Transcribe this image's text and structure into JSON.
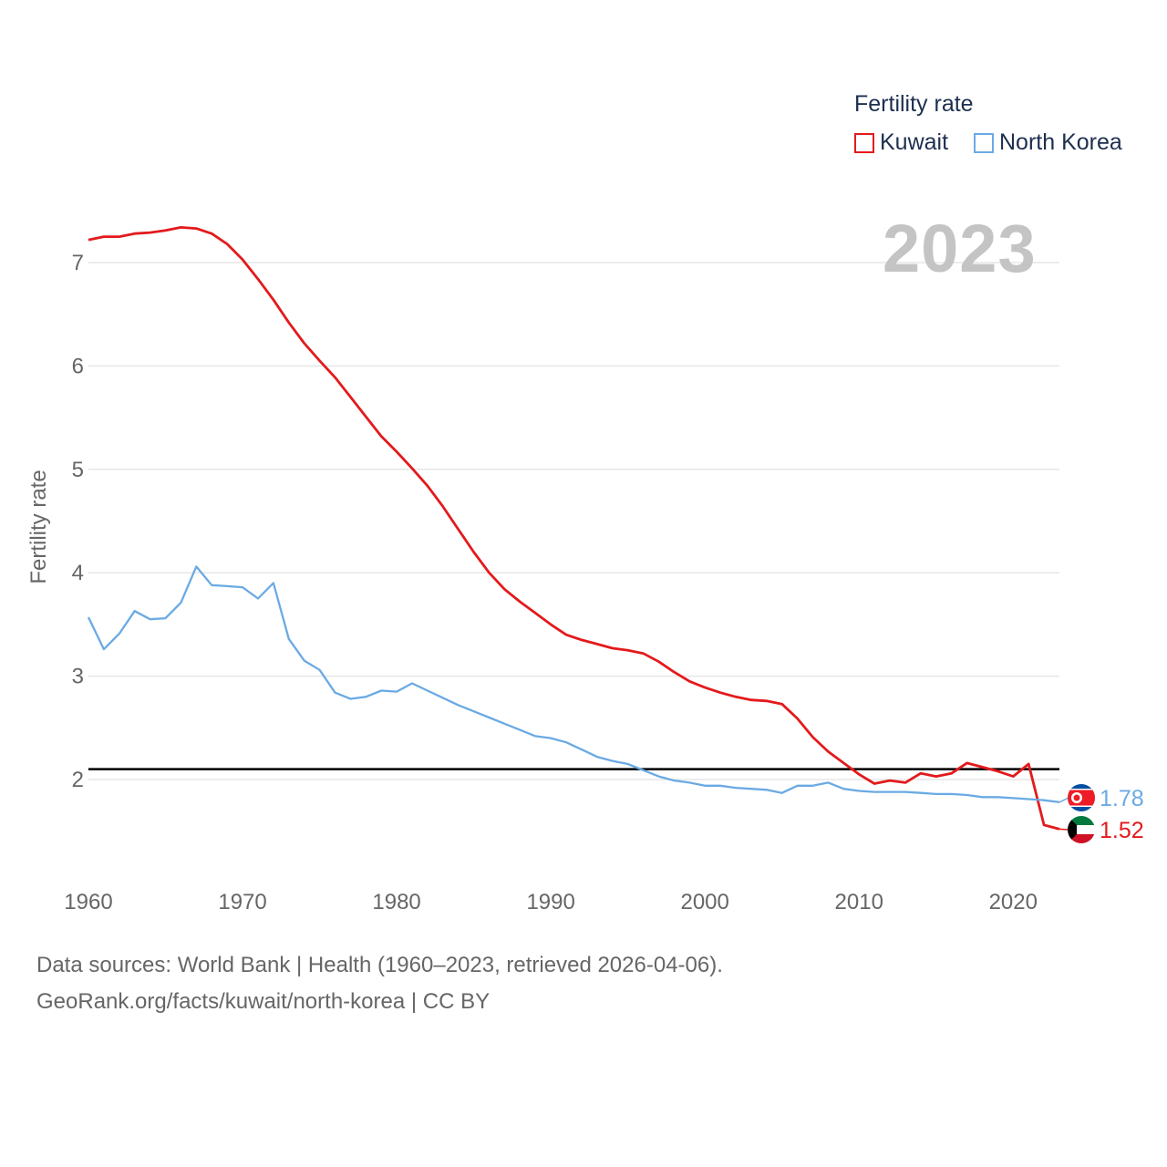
{
  "chart_data": {
    "type": "line",
    "year_display": "2023",
    "legend_title": "Fertility rate",
    "ylabel": "Fertility rate",
    "xlabel": "",
    "xlim": [
      1960,
      2023
    ],
    "ylim": [
      1.2,
      7.5
    ],
    "x_ticks": [
      1960,
      1970,
      1980,
      1990,
      2000,
      2010,
      2020
    ],
    "y_ticks": [
      2,
      3,
      4,
      5,
      6,
      7
    ],
    "reference_line": {
      "y": 2.1,
      "color": "#000000"
    },
    "x": [
      1960,
      1961,
      1962,
      1963,
      1964,
      1965,
      1966,
      1967,
      1968,
      1969,
      1970,
      1971,
      1972,
      1973,
      1974,
      1975,
      1976,
      1977,
      1978,
      1979,
      1980,
      1981,
      1982,
      1983,
      1984,
      1985,
      1986,
      1987,
      1988,
      1989,
      1990,
      1991,
      1992,
      1993,
      1994,
      1995,
      1996,
      1997,
      1998,
      1999,
      2000,
      2001,
      2002,
      2003,
      2004,
      2005,
      2006,
      2007,
      2008,
      2009,
      2010,
      2011,
      2012,
      2013,
      2014,
      2015,
      2016,
      2017,
      2018,
      2019,
      2020,
      2021,
      2022,
      2023
    ],
    "series": [
      {
        "name": "Kuwait",
        "color": "#e31a1c",
        "end_label": "1.52",
        "values": [
          7.22,
          7.25,
          7.25,
          7.28,
          7.29,
          7.31,
          7.34,
          7.33,
          7.28,
          7.18,
          7.03,
          6.84,
          6.64,
          6.42,
          6.22,
          6.05,
          5.89,
          5.7,
          5.51,
          5.32,
          5.17,
          5.01,
          4.84,
          4.64,
          4.42,
          4.2,
          4.0,
          3.84,
          3.72,
          3.61,
          3.5,
          3.4,
          3.35,
          3.31,
          3.27,
          3.25,
          3.22,
          3.14,
          3.04,
          2.95,
          2.89,
          2.84,
          2.8,
          2.77,
          2.76,
          2.73,
          2.59,
          2.41,
          2.27,
          2.16,
          2.05,
          1.96,
          1.99,
          1.97,
          2.06,
          2.03,
          2.06,
          2.16,
          2.12,
          2.08,
          2.03,
          2.15,
          1.56,
          1.52
        ]
      },
      {
        "name": "North Korea",
        "color": "#6aaae4",
        "end_label": "1.78",
        "values": [
          3.57,
          3.26,
          3.41,
          3.63,
          3.55,
          3.56,
          3.71,
          4.06,
          3.88,
          3.87,
          3.86,
          3.75,
          3.9,
          3.36,
          3.15,
          3.06,
          2.84,
          2.78,
          2.8,
          2.86,
          2.85,
          2.93,
          2.86,
          2.79,
          2.72,
          2.66,
          2.6,
          2.54,
          2.48,
          2.42,
          2.4,
          2.36,
          2.29,
          2.22,
          2.18,
          2.15,
          2.09,
          2.03,
          1.99,
          1.97,
          1.94,
          1.94,
          1.92,
          1.91,
          1.9,
          1.87,
          1.94,
          1.94,
          1.97,
          1.91,
          1.89,
          1.88,
          1.88,
          1.88,
          1.87,
          1.86,
          1.86,
          1.85,
          1.83,
          1.83,
          1.82,
          1.81,
          1.8,
          1.78
        ]
      }
    ],
    "legend_placement": "top-right"
  },
  "source": {
    "line1": "Data sources: World Bank | Health (1960–2023, retrieved 2026-04-06).",
    "line2": "GeoRank.org/facts/kuwait/north-korea | CC BY"
  },
  "flags": {
    "north_korea": "north-korea-flag-icon",
    "kuwait": "kuwait-flag-icon"
  }
}
